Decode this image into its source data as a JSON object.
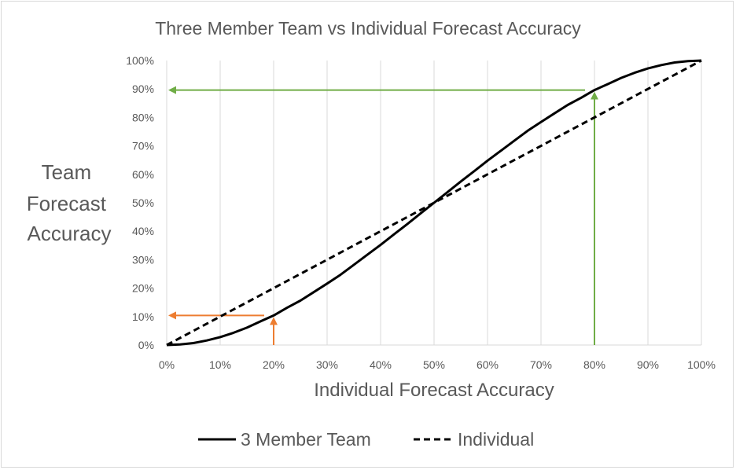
{
  "chart_data": {
    "type": "line",
    "title": "Three Member Team vs Individual Forecast Accuracy",
    "xlabel": "Individual Forecast Accuracy",
    "ylabel_lines": [
      "Team",
      "Forecast",
      "Accuracy"
    ],
    "xlim": [
      0,
      1
    ],
    "ylim": [
      0,
      1
    ],
    "x_ticks": [
      "0%",
      "10%",
      "20%",
      "30%",
      "40%",
      "50%",
      "60%",
      "70%",
      "80%",
      "90%",
      "100%"
    ],
    "y_ticks": [
      "0%",
      "10%",
      "20%",
      "30%",
      "40%",
      "50%",
      "60%",
      "70%",
      "80%",
      "90%",
      "100%"
    ],
    "grid": "vertical",
    "legend_position": "bottom",
    "series": [
      {
        "name": "3 Member Team",
        "style": "solid",
        "color": "#000000",
        "x": [
          0,
          0.025,
          0.05,
          0.075,
          0.1,
          0.125,
          0.15,
          0.175,
          0.2,
          0.225,
          0.25,
          0.275,
          0.3,
          0.325,
          0.35,
          0.375,
          0.4,
          0.425,
          0.45,
          0.475,
          0.5,
          0.525,
          0.55,
          0.575,
          0.6,
          0.625,
          0.65,
          0.675,
          0.7,
          0.725,
          0.75,
          0.775,
          0.8,
          0.825,
          0.85,
          0.875,
          0.9,
          0.925,
          0.95,
          0.975,
          1
        ],
        "y": [
          0,
          0.002,
          0.007,
          0.016,
          0.028,
          0.043,
          0.061,
          0.083,
          0.104,
          0.131,
          0.156,
          0.186,
          0.216,
          0.247,
          0.282,
          0.317,
          0.352,
          0.389,
          0.425,
          0.463,
          0.5,
          0.537,
          0.575,
          0.611,
          0.648,
          0.683,
          0.718,
          0.753,
          0.784,
          0.814,
          0.844,
          0.869,
          0.896,
          0.917,
          0.939,
          0.957,
          0.972,
          0.984,
          0.993,
          0.998,
          1
        ]
      },
      {
        "name": "Individual",
        "style": "dashed",
        "color": "#000000",
        "x": [
          0,
          1
        ],
        "y": [
          0,
          1
        ]
      }
    ],
    "annotations": [
      {
        "name": "orange-arrows",
        "color": "#ed7d31",
        "x": 0.2,
        "y": 0.104
      },
      {
        "name": "green-arrows",
        "color": "#70ad47",
        "x": 0.8,
        "y": 0.896
      }
    ]
  },
  "colors": {
    "text": "#595959",
    "grid": "#d9d9d9",
    "orange": "#ed7d31",
    "green": "#70ad47"
  }
}
